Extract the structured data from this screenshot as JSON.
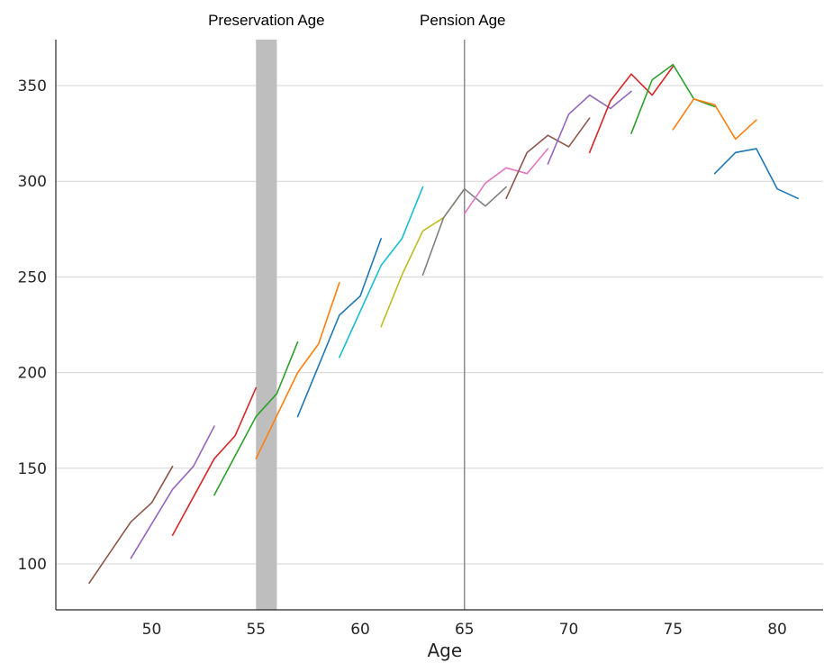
{
  "chart_data": {
    "type": "line",
    "title": "",
    "xlabel": "Age",
    "ylabel": "",
    "xlim": [
      45.4,
      82.2
    ],
    "ylim": [
      76,
      374
    ],
    "xticks": [
      50,
      55,
      60,
      65,
      70,
      75,
      80
    ],
    "yticks": [
      100,
      150,
      200,
      250,
      300,
      350
    ],
    "grid": "horizontal",
    "annotations": [
      {
        "type": "band",
        "x_start": 55,
        "x_end": 56,
        "label": "Preservation Age",
        "color": "#bebebe"
      },
      {
        "type": "vline",
        "x": 65,
        "label": "Pension Age",
        "color": "#7a7a7a"
      }
    ],
    "series": [
      {
        "color": "#8c564b",
        "points": [
          [
            47,
            90
          ],
          [
            49,
            122
          ],
          [
            50,
            132
          ],
          [
            51,
            151
          ]
        ]
      },
      {
        "color": "#9467bd",
        "points": [
          [
            49,
            103
          ],
          [
            51,
            139
          ],
          [
            52,
            151
          ],
          [
            53,
            172
          ]
        ]
      },
      {
        "color": "#d62728",
        "points": [
          [
            51,
            115
          ],
          [
            53,
            155
          ],
          [
            54,
            167
          ],
          [
            55,
            192
          ]
        ]
      },
      {
        "color": "#2ca02c",
        "points": [
          [
            53,
            136
          ],
          [
            55,
            177
          ],
          [
            56,
            189
          ],
          [
            57,
            216
          ]
        ]
      },
      {
        "color": "#ff7f0e",
        "points": [
          [
            55,
            155
          ],
          [
            57,
            200
          ],
          [
            58,
            215
          ],
          [
            59,
            247
          ]
        ]
      },
      {
        "color": "#1f77b4",
        "points": [
          [
            57,
            177
          ],
          [
            59,
            230
          ],
          [
            60,
            240
          ],
          [
            61,
            270
          ]
        ]
      },
      {
        "color": "#17becf",
        "points": [
          [
            59,
            208
          ],
          [
            61,
            256
          ],
          [
            62,
            270
          ],
          [
            63,
            297
          ]
        ]
      },
      {
        "color": "#bcbd22",
        "points": [
          [
            61,
            224
          ],
          [
            62,
            251
          ],
          [
            63,
            274
          ],
          [
            64,
            281
          ],
          [
            65,
            296
          ]
        ]
      },
      {
        "color": "#7f7f7f",
        "points": [
          [
            63,
            251
          ],
          [
            64,
            281
          ],
          [
            65,
            296
          ],
          [
            66,
            287
          ],
          [
            67,
            297
          ]
        ]
      },
      {
        "color": "#e377c2",
        "points": [
          [
            65,
            283
          ],
          [
            66,
            299
          ],
          [
            67,
            307
          ],
          [
            68,
            304
          ],
          [
            69,
            317
          ]
        ]
      },
      {
        "color": "#8c564b",
        "points": [
          [
            67,
            291
          ],
          [
            68,
            315
          ],
          [
            69,
            324
          ],
          [
            70,
            318
          ],
          [
            71,
            333
          ]
        ]
      },
      {
        "color": "#9467bd",
        "points": [
          [
            69,
            309
          ],
          [
            70,
            335
          ],
          [
            71,
            345
          ],
          [
            72,
            338
          ],
          [
            73,
            347
          ]
        ]
      },
      {
        "color": "#d62728",
        "points": [
          [
            71,
            315
          ],
          [
            72,
            342
          ],
          [
            73,
            356
          ],
          [
            74,
            345
          ],
          [
            75,
            360
          ]
        ]
      },
      {
        "color": "#2ca02c",
        "points": [
          [
            73,
            325
          ],
          [
            74,
            353
          ],
          [
            75,
            361
          ],
          [
            76,
            343
          ],
          [
            77,
            339
          ]
        ]
      },
      {
        "color": "#ff7f0e",
        "points": [
          [
            75,
            327
          ],
          [
            76,
            343
          ],
          [
            77,
            340
          ],
          [
            78,
            322
          ],
          [
            79,
            332
          ]
        ]
      },
      {
        "color": "#1f77b4",
        "points": [
          [
            77,
            304
          ],
          [
            78,
            315
          ],
          [
            79,
            317
          ],
          [
            80,
            296
          ],
          [
            81,
            291
          ]
        ]
      }
    ]
  }
}
